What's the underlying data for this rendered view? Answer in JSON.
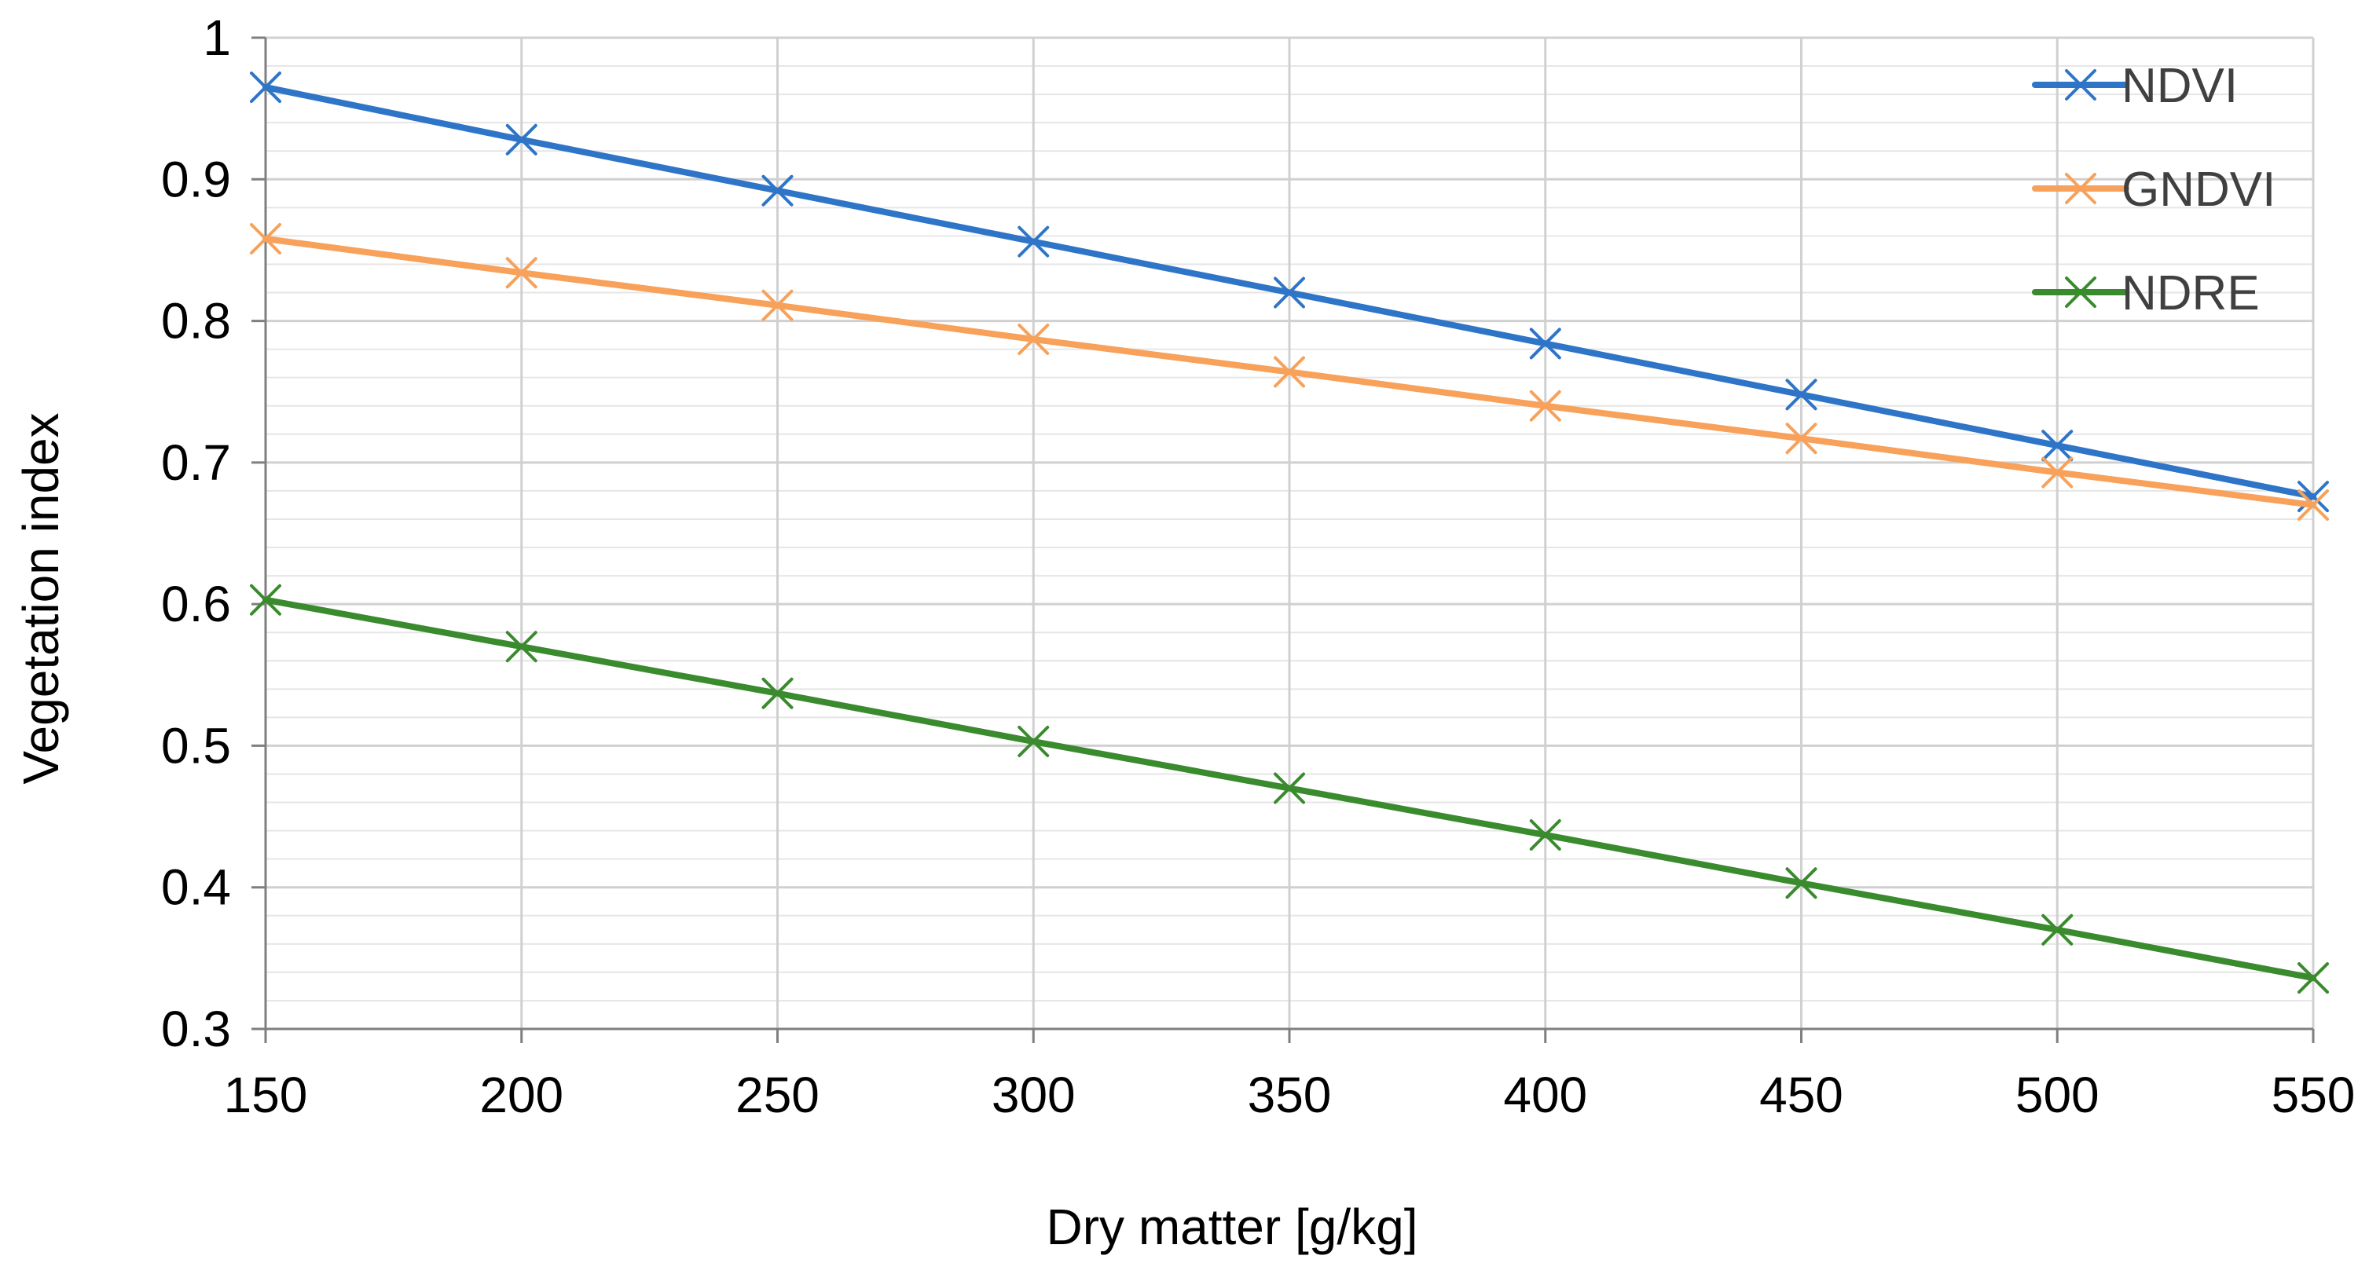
{
  "chart_data": {
    "type": "line",
    "title": "",
    "xlabel": "Dry matter [g/kg]",
    "ylabel": "Vegetation index",
    "x": [
      150,
      200,
      250,
      300,
      350,
      400,
      450,
      500,
      550
    ],
    "xlim": [
      150,
      550
    ],
    "ylim": [
      0.3,
      1
    ],
    "x_ticks": [
      "150",
      "200",
      "250",
      "300",
      "350",
      "400",
      "450",
      "500",
      "550"
    ],
    "y_ticks": [
      "0.3",
      "0.4",
      "0.5",
      "0.6",
      "0.7",
      "0.8",
      "0.9",
      "1"
    ],
    "grid": true,
    "legend_position": "top-right",
    "marker": "x",
    "series": [
      {
        "name": "NDVI",
        "color": "#2E75C8",
        "values": [
          0.965,
          0.928,
          0.892,
          0.856,
          0.82,
          0.784,
          0.748,
          0.712,
          0.676
        ]
      },
      {
        "name": "GNDVI",
        "color": "#F7A15A",
        "values": [
          0.858,
          0.834,
          0.811,
          0.787,
          0.764,
          0.74,
          0.717,
          0.693,
          0.67
        ]
      },
      {
        "name": "NDRE",
        "color": "#3A8A2E",
        "values": [
          0.603,
          0.57,
          0.537,
          0.503,
          0.47,
          0.437,
          0.403,
          0.37,
          0.336
        ]
      }
    ]
  }
}
